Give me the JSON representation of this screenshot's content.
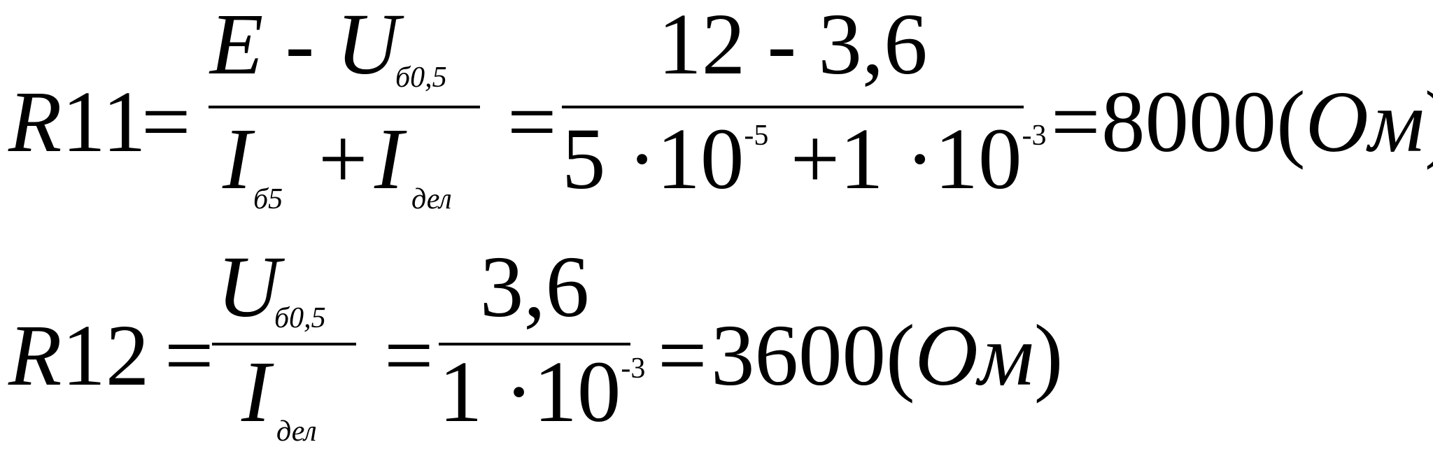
{
  "formula1": {
    "lhs_symbol": "R",
    "lhs_index": "11",
    "equals": "=",
    "num_symbolic": {
      "e": "E",
      "minus": "-",
      "u": "U",
      "u_sub": "б0,5"
    },
    "den_symbolic": {
      "i1": "I",
      "i1_sub": "б5",
      "plus": "+",
      "i2": "I",
      "i2_sub": "дел"
    },
    "num_numeric": "12 - 3,6",
    "den_numeric": {
      "a": "5 ·10",
      "a_exp": "-5",
      "b": " +1 ·10",
      "b_exp": "-3"
    },
    "result": "8000(",
    "unit": "Ом",
    "close": ")"
  },
  "formula2": {
    "lhs_symbol": "R",
    "lhs_index": "12",
    "equals": "=",
    "num_symbolic": {
      "u": "U",
      "u_sub": "б0,5"
    },
    "den_symbolic": {
      "i": "I",
      "i_sub": "дел"
    },
    "num_numeric": "3,6",
    "den_numeric": {
      "a": "1 ·10",
      "a_exp": "-3"
    },
    "result": "3600(",
    "unit": "Ом",
    "close": ")"
  }
}
